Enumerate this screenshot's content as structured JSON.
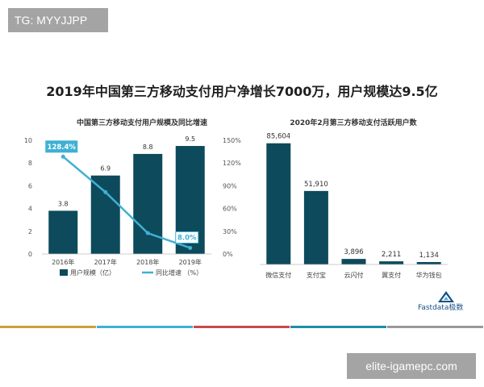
{
  "watermarks": {
    "top_left": "TG: MYYJJPP",
    "bottom_right": "elite-igamepc.com"
  },
  "title": "2019年中国第三方移动支付用户净增长7000万，用户规模达9.5亿",
  "brand": "Fastdata极数",
  "colors": {
    "bar": "#0d4a5b",
    "line": "#3fb0d4",
    "divider": [
      "#c7a13c",
      "#3fb0d4",
      "#c64a4a",
      "#1e8da5",
      "#9a9a9a"
    ]
  },
  "chart_data": [
    {
      "type": "bar",
      "title": "中国第三方移动支付用户规模及同比增速",
      "categories": [
        "2016年",
        "2017年",
        "2018年",
        "2019年"
      ],
      "series": [
        {
          "name": "用户规模（亿）",
          "type": "bar",
          "axis": "left",
          "values": [
            3.8,
            6.9,
            8.8,
            9.5
          ]
        },
        {
          "name": "同比增速 （%）",
          "type": "line",
          "axis": "right",
          "values": [
            128.4,
            81.6,
            27.5,
            8.0
          ]
        }
      ],
      "left_axis": {
        "ylim": [
          0,
          10
        ],
        "ticks": [
          "0",
          "2",
          "4",
          "6",
          "8",
          "10"
        ]
      },
      "right_axis": {
        "ylim": [
          0,
          150
        ],
        "ticks": [
          "0%",
          "30%",
          "60%",
          "90%",
          "120%",
          "150%"
        ]
      },
      "callouts": [
        "128.4%",
        "8.0%"
      ],
      "legend_position": "bottom"
    },
    {
      "type": "bar",
      "title": "2020年2月第三方移动支付活跃用户数",
      "categories": [
        "微信支付",
        "支付宝",
        "云闪付",
        "翼支付",
        "华为钱包"
      ],
      "values": [
        85604,
        51910,
        3896,
        2211,
        1134
      ],
      "value_labels": [
        "85,604",
        "51,910",
        "3,896",
        "2,211",
        "1,134"
      ],
      "ylim": [
        0,
        90000
      ]
    }
  ]
}
